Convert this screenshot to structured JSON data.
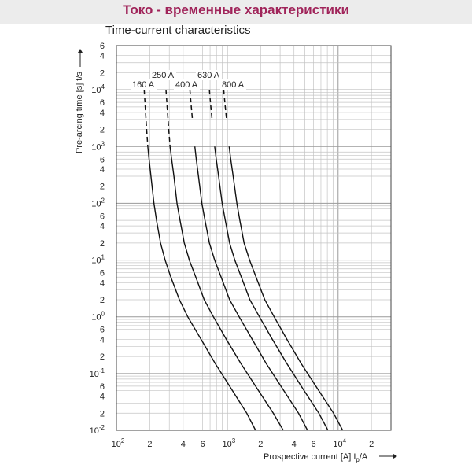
{
  "header": {
    "title": "Токо - временные характеристики"
  },
  "chart_data": {
    "type": "line",
    "title": "Time-current characteristics",
    "xlabel": "Prospective current [A]",
    "xlabel_unit": "/A",
    "ylabel": "Pre-arcing time [s]",
    "ylabel_unit": "/s",
    "x_scale": "log",
    "y_scale": "log",
    "xlim": [
      100,
      30000
    ],
    "ylim": [
      0.01,
      60000
    ],
    "grid": true,
    "x_ticks": [
      {
        "value": 100,
        "mant": "10",
        "exp": "2"
      },
      {
        "value": 200,
        "mant": "2",
        "exp": ""
      },
      {
        "value": 400,
        "mant": "4",
        "exp": ""
      },
      {
        "value": 600,
        "mant": "6",
        "exp": ""
      },
      {
        "value": 1000,
        "mant": "10",
        "exp": "3"
      },
      {
        "value": 2000,
        "mant": "2",
        "exp": ""
      },
      {
        "value": 4000,
        "mant": "4",
        "exp": ""
      },
      {
        "value": 6000,
        "mant": "6",
        "exp": ""
      },
      {
        "value": 10000,
        "mant": "10",
        "exp": "4"
      },
      {
        "value": 20000,
        "mant": "2",
        "exp": ""
      }
    ],
    "y_ticks": [
      {
        "value": 60000,
        "mant": "6",
        "exp": ""
      },
      {
        "value": 40000,
        "mant": "4",
        "exp": ""
      },
      {
        "value": 20000,
        "mant": "2",
        "exp": ""
      },
      {
        "value": 10000,
        "mant": "10",
        "exp": "4"
      },
      {
        "value": 6000,
        "mant": "6",
        "exp": ""
      },
      {
        "value": 4000,
        "mant": "4",
        "exp": ""
      },
      {
        "value": 2000,
        "mant": "2",
        "exp": ""
      },
      {
        "value": 1000,
        "mant": "10",
        "exp": "3"
      },
      {
        "value": 600,
        "mant": "6",
        "exp": ""
      },
      {
        "value": 400,
        "mant": "4",
        "exp": ""
      },
      {
        "value": 200,
        "mant": "2",
        "exp": ""
      },
      {
        "value": 100,
        "mant": "10",
        "exp": "2"
      },
      {
        "value": 60,
        "mant": "6",
        "exp": ""
      },
      {
        "value": 40,
        "mant": "4",
        "exp": ""
      },
      {
        "value": 20,
        "mant": "2",
        "exp": ""
      },
      {
        "value": 10,
        "mant": "10",
        "exp": "1"
      },
      {
        "value": 6,
        "mant": "6",
        "exp": ""
      },
      {
        "value": 4,
        "mant": "4",
        "exp": ""
      },
      {
        "value": 2,
        "mant": "2",
        "exp": ""
      },
      {
        "value": 1,
        "mant": "10",
        "exp": "0"
      },
      {
        "value": 0.6,
        "mant": "6",
        "exp": ""
      },
      {
        "value": 0.4,
        "mant": "4",
        "exp": ""
      },
      {
        "value": 0.2,
        "mant": "2",
        "exp": ""
      },
      {
        "value": 0.1,
        "mant": "10",
        "exp": "-1"
      },
      {
        "value": 0.06,
        "mant": "6",
        "exp": ""
      },
      {
        "value": 0.04,
        "mant": "4",
        "exp": ""
      },
      {
        "value": 0.02,
        "mant": "2",
        "exp": ""
      },
      {
        "value": 0.01,
        "mant": "10",
        "exp": "-2"
      }
    ],
    "series": [
      {
        "name": "160 A",
        "dashed_until_t": 1000,
        "points": [
          [
            178,
            10000
          ],
          [
            181,
            6000
          ],
          [
            185,
            3000
          ],
          [
            192,
            1000
          ],
          [
            197,
            600
          ],
          [
            205,
            300
          ],
          [
            218,
            100
          ],
          [
            230,
            50
          ],
          [
            250,
            20
          ],
          [
            275,
            10
          ],
          [
            310,
            5
          ],
          [
            370,
            2
          ],
          [
            440,
            1
          ],
          [
            580,
            0.4
          ],
          [
            780,
            0.15
          ],
          [
            1050,
            0.06
          ],
          [
            1500,
            0.02
          ],
          [
            1800,
            0.01
          ]
        ]
      },
      {
        "name": "250 A",
        "dashed_until_t": 1000,
        "points": [
          [
            280,
            10000
          ],
          [
            285,
            6000
          ],
          [
            292,
            3000
          ],
          [
            305,
            1000
          ],
          [
            315,
            600
          ],
          [
            330,
            300
          ],
          [
            352,
            100
          ],
          [
            375,
            50
          ],
          [
            410,
            20
          ],
          [
            455,
            10
          ],
          [
            520,
            5
          ],
          [
            620,
            2
          ],
          [
            750,
            1
          ],
          [
            980,
            0.4
          ],
          [
            1330,
            0.15
          ],
          [
            1800,
            0.06
          ],
          [
            2600,
            0.02
          ],
          [
            3200,
            0.01
          ]
        ]
      },
      {
        "name": "400 A",
        "dashed_until_t": 2000,
        "points": [
          [
            460,
            10000
          ],
          [
            470,
            6000
          ],
          [
            485,
            3000
          ],
          [
            510,
            1000
          ],
          [
            525,
            600
          ],
          [
            550,
            300
          ],
          [
            590,
            100
          ],
          [
            630,
            50
          ],
          [
            690,
            20
          ],
          [
            770,
            10
          ],
          [
            880,
            5
          ],
          [
            1050,
            2
          ],
          [
            1280,
            1
          ],
          [
            1680,
            0.4
          ],
          [
            2250,
            0.15
          ],
          [
            3050,
            0.06
          ],
          [
            4400,
            0.02
          ],
          [
            5300,
            0.01
          ]
        ]
      },
      {
        "name": "630 A",
        "dashed_until_t": 2000,
        "points": [
          [
            690,
            10000
          ],
          [
            705,
            6000
          ],
          [
            730,
            3000
          ],
          [
            770,
            1000
          ],
          [
            795,
            600
          ],
          [
            835,
            300
          ],
          [
            900,
            100
          ],
          [
            960,
            50
          ],
          [
            1050,
            20
          ],
          [
            1170,
            10
          ],
          [
            1340,
            5
          ],
          [
            1600,
            2
          ],
          [
            1950,
            1
          ],
          [
            2550,
            0.4
          ],
          [
            3450,
            0.15
          ],
          [
            4650,
            0.06
          ],
          [
            6700,
            0.02
          ],
          [
            8100,
            0.01
          ]
        ]
      },
      {
        "name": "800 A",
        "dashed_until_t": 2000,
        "points": [
          [
            930,
            10000
          ],
          [
            950,
            6000
          ],
          [
            985,
            3000
          ],
          [
            1040,
            1000
          ],
          [
            1075,
            600
          ],
          [
            1130,
            300
          ],
          [
            1220,
            100
          ],
          [
            1300,
            50
          ],
          [
            1420,
            20
          ],
          [
            1590,
            10
          ],
          [
            1820,
            5
          ],
          [
            2180,
            2
          ],
          [
            2650,
            1
          ],
          [
            3450,
            0.4
          ],
          [
            4650,
            0.15
          ],
          [
            6300,
            0.06
          ],
          [
            9100,
            0.02
          ],
          [
            11000,
            0.01
          ]
        ]
      }
    ]
  }
}
